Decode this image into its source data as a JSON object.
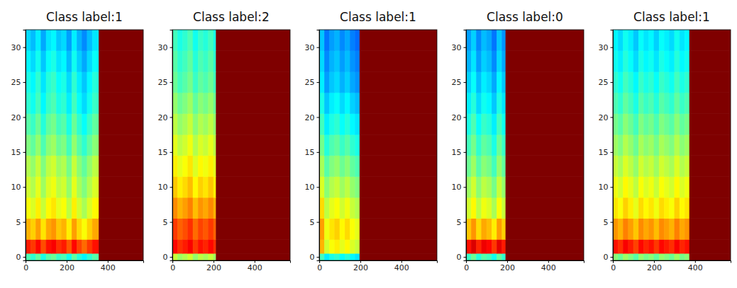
{
  "chart_data": [
    {
      "type": "heatmap",
      "title": "Class label:1",
      "color": "jet",
      "xlim": [
        -0.5,
        573.5
      ],
      "ylim": [
        -0.5,
        32.5
      ],
      "xticks": [
        0,
        200,
        400
      ],
      "yticks": [
        0,
        5,
        10,
        15,
        20,
        25,
        30
      ],
      "zlim": [
        0,
        100
      ],
      "x_edges": [
        -0.5,
        25,
        50,
        75,
        100,
        125,
        150,
        175,
        200,
        225,
        250,
        275,
        300,
        325,
        357,
        573.5
      ],
      "y_edges": [
        -0.5,
        0.5,
        2.5,
        5.5,
        8.5,
        11.5,
        14.5,
        17.5,
        20.5,
        23.5,
        26.5,
        29.5,
        32.5
      ],
      "cells": [
        [
          45,
          42,
          47,
          40,
          46,
          48,
          43,
          45,
          39,
          47,
          41,
          37,
          42,
          46,
          100
        ],
        [
          85,
          82,
          87,
          80,
          86,
          88,
          83,
          85,
          79,
          87,
          81,
          77,
          82,
          86,
          100
        ],
        [
          70,
          67,
          72,
          65,
          71,
          73,
          68,
          70,
          64,
          72,
          66,
          62,
          67,
          71,
          100
        ],
        [
          62,
          59,
          64,
          57,
          63,
          65,
          60,
          62,
          56,
          64,
          58,
          54,
          59,
          63,
          100
        ],
        [
          58,
          55,
          60,
          53,
          59,
          61,
          56,
          58,
          52,
          60,
          54,
          50,
          55,
          59,
          100
        ],
        [
          55,
          52,
          57,
          50,
          56,
          58,
          53,
          55,
          49,
          57,
          51,
          47,
          52,
          56,
          100
        ],
        [
          50,
          47,
          52,
          45,
          51,
          53,
          48,
          50,
          44,
          52,
          46,
          42,
          47,
          51,
          100
        ],
        [
          46,
          43,
          48,
          41,
          47,
          49,
          44,
          46,
          40,
          48,
          42,
          38,
          43,
          47,
          100
        ],
        [
          42,
          39,
          44,
          37,
          43,
          45,
          40,
          42,
          36,
          44,
          38,
          34,
          39,
          43,
          100
        ],
        [
          40,
          37,
          42,
          35,
          41,
          43,
          38,
          40,
          34,
          42,
          36,
          32,
          37,
          41,
          100
        ],
        [
          37,
          34,
          39,
          32,
          38,
          40,
          35,
          37,
          31,
          39,
          33,
          29,
          34,
          38,
          100
        ],
        [
          34,
          31,
          36,
          29,
          35,
          37,
          32,
          34,
          28,
          36,
          30,
          26,
          31,
          35,
          100
        ]
      ]
    },
    {
      "type": "heatmap",
      "title": "Class label:2",
      "color": "jet",
      "xlim": [
        -0.5,
        573.5
      ],
      "ylim": [
        -0.5,
        32.5
      ],
      "xticks": [
        0,
        200,
        400
      ],
      "yticks": [
        0,
        5,
        10,
        15,
        20,
        25,
        30
      ],
      "zlim": [
        0,
        100
      ],
      "x_edges": [
        -0.5,
        25,
        50,
        75,
        100,
        125,
        150,
        175,
        200,
        213,
        573.5
      ],
      "y_edges": [
        -0.5,
        0.5,
        2.5,
        5.5,
        8.5,
        11.5,
        14.5,
        17.5,
        20.5,
        23.5,
        26.5,
        29.5,
        32.5
      ],
      "cells": [
        [
          57,
          53,
          55,
          58,
          52,
          56,
          54,
          57,
          53,
          100
        ],
        [
          87,
          83,
          85,
          88,
          82,
          86,
          84,
          87,
          83,
          100
        ],
        [
          82,
          78,
          80,
          83,
          77,
          81,
          79,
          82,
          78,
          100
        ],
        [
          74,
          70,
          72,
          75,
          69,
          73,
          71,
          74,
          70,
          100
        ],
        [
          68,
          64,
          66,
          69,
          63,
          67,
          65,
          68,
          64,
          100
        ],
        [
          64,
          60,
          62,
          65,
          59,
          63,
          61,
          64,
          60,
          100
        ],
        [
          60,
          56,
          58,
          61,
          55,
          59,
          57,
          60,
          56,
          100
        ],
        [
          56,
          52,
          54,
          57,
          51,
          55,
          53,
          56,
          52,
          100
        ],
        [
          52,
          48,
          50,
          53,
          47,
          51,
          49,
          52,
          48,
          100
        ],
        [
          48,
          44,
          46,
          49,
          43,
          47,
          45,
          48,
          44,
          100
        ],
        [
          46,
          42,
          44,
          47,
          41,
          45,
          43,
          46,
          42,
          100
        ],
        [
          44,
          40,
          42,
          45,
          39,
          43,
          41,
          44,
          40,
          100
        ]
      ]
    },
    {
      "type": "heatmap",
      "title": "Class label:1",
      "color": "jet",
      "xlim": [
        -0.5,
        573.5
      ],
      "ylim": [
        -0.5,
        32.5
      ],
      "xticks": [
        0,
        200,
        400
      ],
      "yticks": [
        0,
        5,
        10,
        15,
        20,
        25,
        30
      ],
      "zlim": [
        0,
        100
      ],
      "x_edges": [
        -0.5,
        25,
        50,
        75,
        100,
        125,
        150,
        175,
        197,
        573.5
      ],
      "y_edges": [
        -0.5,
        0.5,
        2.5,
        5.5,
        8.5,
        11.5,
        14.5,
        17.5,
        20.5,
        23.5,
        26.5,
        29.5,
        32.5
      ],
      "cells": [
        [
          44,
          36,
          40,
          42,
          38,
          41,
          37,
          35,
          100
        ],
        [
          70,
          58,
          62,
          64,
          60,
          63,
          59,
          57,
          100
        ],
        [
          72,
          61,
          65,
          67,
          63,
          66,
          62,
          60,
          100
        ],
        [
          66,
          56,
          60,
          62,
          58,
          61,
          57,
          55,
          100
        ],
        [
          59,
          51,
          55,
          57,
          53,
          56,
          52,
          50,
          100
        ],
        [
          54,
          46,
          50,
          52,
          48,
          51,
          47,
          45,
          100
        ],
        [
          49,
          41,
          45,
          47,
          43,
          46,
          42,
          40,
          100
        ],
        [
          44,
          36,
          40,
          42,
          38,
          41,
          37,
          35,
          100
        ],
        [
          40,
          32,
          36,
          38,
          34,
          37,
          33,
          31,
          100
        ],
        [
          36,
          28,
          32,
          34,
          30,
          33,
          29,
          27,
          100
        ],
        [
          34,
          26,
          30,
          32,
          28,
          31,
          27,
          25,
          100
        ],
        [
          32,
          24,
          28,
          30,
          26,
          29,
          25,
          23,
          100
        ]
      ]
    },
    {
      "type": "heatmap",
      "title": "Class label:0",
      "color": "jet",
      "xlim": [
        -0.5,
        573.5
      ],
      "ylim": [
        -0.5,
        32.5
      ],
      "xticks": [
        0,
        200,
        400
      ],
      "yticks": [
        0,
        5,
        10,
        15,
        20,
        25,
        30
      ],
      "zlim": [
        0,
        100
      ],
      "x_edges": [
        -0.5,
        25,
        50,
        75,
        100,
        125,
        150,
        175,
        193,
        573.5
      ],
      "y_edges": [
        -0.5,
        0.5,
        2.5,
        5.5,
        8.5,
        11.5,
        14.5,
        17.5,
        20.5,
        23.5,
        26.5,
        29.5,
        32.5
      ],
      "cells": [
        [
          43,
          48,
          41,
          46,
          44,
          39,
          47,
          42,
          100
        ],
        [
          86,
          91,
          84,
          89,
          87,
          82,
          90,
          85,
          100
        ],
        [
          68,
          73,
          66,
          71,
          69,
          64,
          72,
          67,
          100
        ],
        [
          58,
          63,
          56,
          61,
          59,
          54,
          62,
          57,
          100
        ],
        [
          53,
          58,
          51,
          56,
          54,
          49,
          57,
          52,
          100
        ],
        [
          48,
          53,
          46,
          51,
          49,
          44,
          52,
          47,
          100
        ],
        [
          44,
          49,
          42,
          47,
          45,
          40,
          48,
          43,
          100
        ],
        [
          40,
          45,
          38,
          43,
          41,
          36,
          44,
          39,
          100
        ],
        [
          36,
          41,
          34,
          39,
          37,
          32,
          40,
          35,
          100
        ],
        [
          33,
          38,
          31,
          36,
          34,
          29,
          37,
          32,
          100
        ],
        [
          30,
          35,
          28,
          33,
          31,
          26,
          34,
          29,
          100
        ],
        [
          28,
          33,
          26,
          31,
          29,
          24,
          32,
          27,
          100
        ]
      ]
    },
    {
      "type": "heatmap",
      "title": "Class label:1",
      "color": "jet",
      "xlim": [
        -0.5,
        573.5
      ],
      "ylim": [
        -0.5,
        32.5
      ],
      "xticks": [
        0,
        200,
        400
      ],
      "yticks": [
        0,
        5,
        10,
        15,
        20,
        25,
        30
      ],
      "zlim": [
        0,
        100
      ],
      "x_edges": [
        -0.5,
        25,
        50,
        75,
        100,
        125,
        150,
        175,
        200,
        225,
        250,
        275,
        300,
        325,
        350,
        373,
        573.5
      ],
      "y_edges": [
        -0.5,
        0.5,
        2.5,
        5.5,
        8.5,
        11.5,
        14.5,
        17.5,
        20.5,
        23.5,
        26.5,
        29.5,
        32.5
      ],
      "cells": [
        [
          51,
          48,
          53,
          50,
          46,
          52,
          49,
          51,
          47,
          52,
          50,
          48,
          53,
          49,
          51,
          100
        ],
        [
          86,
          83,
          88,
          85,
          81,
          87,
          84,
          86,
          82,
          87,
          85,
          83,
          88,
          84,
          86,
          100
        ],
        [
          73,
          70,
          75,
          72,
          68,
          74,
          71,
          73,
          69,
          74,
          72,
          70,
          75,
          71,
          73,
          100
        ],
        [
          65,
          62,
          67,
          64,
          60,
          66,
          63,
          65,
          61,
          66,
          64,
          62,
          67,
          63,
          65,
          100
        ],
        [
          61,
          58,
          63,
          60,
          56,
          62,
          59,
          61,
          57,
          62,
          60,
          58,
          63,
          59,
          61,
          100
        ],
        [
          57,
          54,
          59,
          56,
          52,
          58,
          55,
          57,
          53,
          58,
          56,
          54,
          59,
          55,
          57,
          100
        ],
        [
          53,
          50,
          55,
          52,
          48,
          54,
          51,
          53,
          49,
          54,
          52,
          50,
          55,
          51,
          53,
          100
        ],
        [
          49,
          46,
          51,
          48,
          44,
          50,
          47,
          49,
          45,
          50,
          48,
          46,
          51,
          47,
          49,
          100
        ],
        [
          45,
          42,
          47,
          44,
          40,
          46,
          43,
          45,
          41,
          46,
          44,
          42,
          47,
          43,
          45,
          100
        ],
        [
          42,
          39,
          44,
          41,
          37,
          43,
          40,
          42,
          38,
          43,
          41,
          39,
          44,
          40,
          42,
          100
        ],
        [
          39,
          36,
          41,
          38,
          34,
          40,
          37,
          39,
          35,
          40,
          38,
          36,
          41,
          37,
          39,
          100
        ],
        [
          37,
          34,
          39,
          36,
          32,
          38,
          35,
          37,
          33,
          38,
          36,
          34,
          39,
          35,
          37,
          100
        ]
      ]
    }
  ]
}
